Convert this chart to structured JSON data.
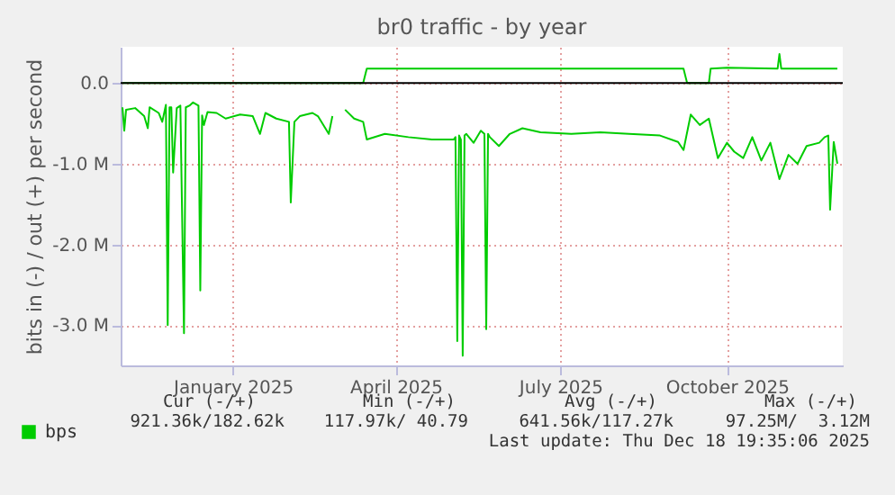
{
  "chart_data": {
    "type": "line",
    "title": "br0 traffic - by year",
    "ylabel": "bits in (-) / out (+) per second",
    "xlim": [
      "2024-10-31",
      "2025-12-04"
    ],
    "xticks": [
      {
        "value": "2025-01-01",
        "label": "January 2025"
      },
      {
        "value": "2025-04-01",
        "label": "April 2025"
      },
      {
        "value": "2025-07-01",
        "label": "July 2025"
      },
      {
        "value": "2025-10-01",
        "label": "October 2025"
      }
    ],
    "ylim": [
      -3500000,
      450000
    ],
    "yticks": [
      {
        "value": -3000000,
        "label": "-3.0 M"
      },
      {
        "value": -2000000,
        "label": "-2.0 M"
      },
      {
        "value": -1000000,
        "label": "-1.0 M"
      },
      {
        "value": 0,
        "label": "0.0"
      }
    ],
    "grid": true,
    "legend": "bottom left",
    "line_style": "solid",
    "ref_lines": [
      {
        "axis": "y",
        "value": 0,
        "color": "#000000"
      }
    ],
    "series": [
      {
        "name": "bps",
        "color": "#00cc00",
        "x": [
          "2024-11-01",
          "2025-03-14",
          "2025-03-16",
          "2025-09-07",
          "2025-09-09",
          "2025-09-21",
          "2025-09-22",
          "2025-10-01",
          "2025-10-29",
          "2025-10-30",
          "2025-10-31",
          "2025-12-01"
        ],
        "values": [
          0,
          0,
          180000,
          180000,
          0,
          0,
          180000,
          190000,
          180000,
          360000,
          180000,
          180000
        ]
      },
      {
        "color": "#00cc00",
        "x": [
          "2024-11-01",
          "2024-11-02",
          "2024-11-03",
          "2024-11-08",
          "2024-11-13",
          "2024-11-15",
          "2024-11-16",
          "2024-11-21",
          "2024-11-23",
          "2024-11-25",
          "2024-11-26",
          "2024-11-27",
          "2024-11-28",
          "2024-11-29",
          "2024-12-01",
          "2024-12-03",
          "2024-12-05",
          "2024-12-06",
          "2024-12-08",
          "2024-12-10",
          "2024-12-13",
          "2024-12-14",
          "2024-12-15",
          "2024-12-16",
          "2024-12-18",
          "2024-12-23",
          "2024-12-28",
          "2025-01-05",
          "2025-01-12",
          "2025-01-16",
          "2025-01-19",
          "2025-01-25",
          "2025-02-01",
          "2025-02-02",
          "2025-02-04",
          "2025-02-07",
          "2025-02-14",
          "2025-02-17",
          "2025-02-23",
          "2025-02-25",
          "2025-02-28",
          "2025-03-04",
          "2025-03-09",
          "2025-03-14",
          "2025-03-16",
          "2025-03-26",
          "2025-04-08",
          "2025-04-21",
          "2025-05-03",
          "2025-05-04",
          "2025-05-05",
          "2025-05-06",
          "2025-05-07",
          "2025-05-08",
          "2025-05-09",
          "2025-05-10",
          "2025-05-14",
          "2025-05-18",
          "2025-05-20",
          "2025-05-21",
          "2025-05-22",
          "2025-05-23",
          "2025-05-28",
          "2025-06-03",
          "2025-06-10",
          "2025-06-20",
          "2025-07-07",
          "2025-07-23",
          "2025-08-08",
          "2025-08-25",
          "2025-09-04",
          "2025-09-07",
          "2025-09-11",
          "2025-09-16",
          "2025-09-21",
          "2025-09-26",
          "2025-10-01",
          "2025-10-05",
          "2025-10-10",
          "2025-10-15",
          "2025-10-20",
          "2025-10-25",
          "2025-10-30",
          "2025-11-04",
          "2025-11-09",
          "2025-11-14",
          "2025-11-21",
          "2025-11-24",
          "2025-11-26",
          "2025-11-27",
          "2025-11-29",
          "2025-12-01"
        ],
        "values": [
          -300000,
          -590000,
          -330000,
          -310000,
          -410000,
          -560000,
          -300000,
          -370000,
          -480000,
          -270000,
          -3000000,
          -300000,
          -300000,
          -1110000,
          -310000,
          -280000,
          -3100000,
          -300000,
          -280000,
          -240000,
          -280000,
          -2570000,
          -400000,
          -520000,
          -360000,
          -370000,
          -440000,
          -390000,
          -410000,
          -630000,
          -370000,
          -440000,
          -480000,
          -1480000,
          -480000,
          -410000,
          -370000,
          -410000,
          -630000,
          -410000,
          null,
          -330000,
          -440000,
          -480000,
          -700000,
          -630000,
          -670000,
          -700000,
          -700000,
          -670000,
          -3200000,
          -650000,
          -700000,
          -3380000,
          -650000,
          -630000,
          -740000,
          -590000,
          -630000,
          -3050000,
          -630000,
          -670000,
          -780000,
          -630000,
          -560000,
          -610000,
          -630000,
          -610000,
          -630000,
          -650000,
          -730000,
          -830000,
          -390000,
          -520000,
          -440000,
          -930000,
          -740000,
          -850000,
          -930000,
          -670000,
          -960000,
          -740000,
          -1190000,
          -890000,
          -1000000,
          -780000,
          -740000,
          -670000,
          -650000,
          -1570000,
          -730000,
          -1000000
        ]
      }
    ],
    "annotations": [
      "Cur (-/+)",
      "Min (-/+)",
      "Avg (-/+)",
      "Max (-/+)",
      "921.36k/182.62k",
      "117.97k/ 40.79",
      "641.56k/117.27k",
      "97.25M/  3.12M",
      "Last update: Thu Dec 18 19:35:06 2025"
    ]
  }
}
